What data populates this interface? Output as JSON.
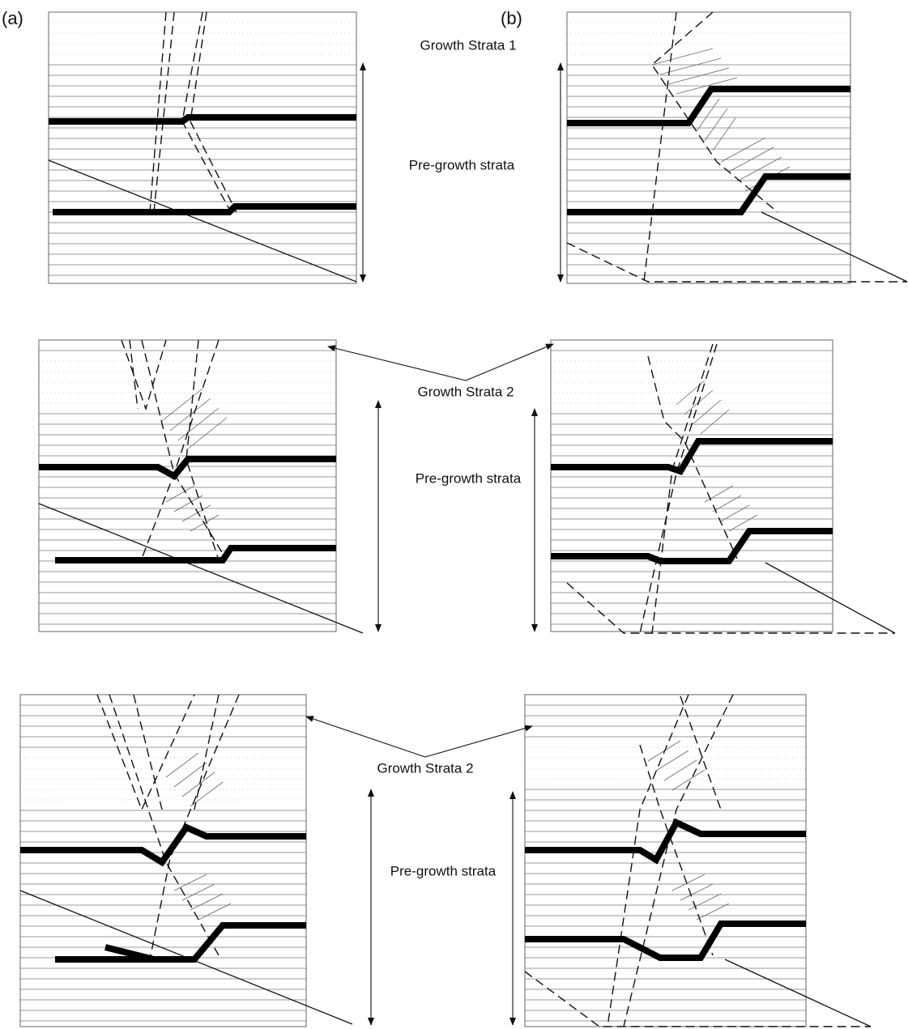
{
  "labels": {
    "panel_a": "(a)",
    "panel_b": "(b)"
  },
  "rows": [
    {
      "growth_label": "Growth Strata 1",
      "pregrowth_label": "Pre-growth strata"
    },
    {
      "growth_label": "Growth Strata 2",
      "pregrowth_label": "Pre-growth strata"
    },
    {
      "growth_label": "Growth Strata 2",
      "pregrowth_label": "Pre-growth strata"
    }
  ]
}
